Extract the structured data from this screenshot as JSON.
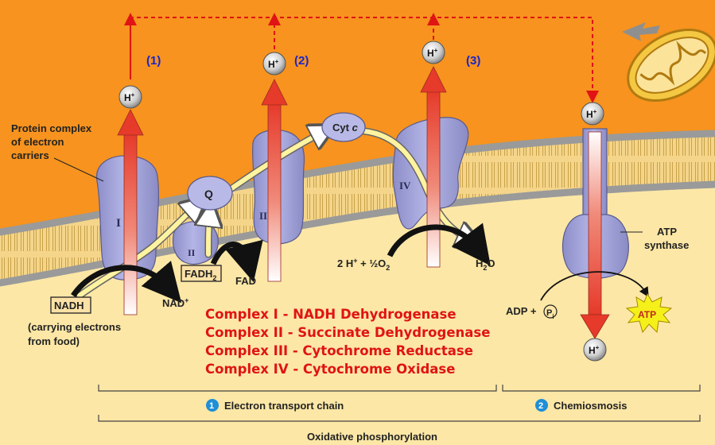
{
  "labels": {
    "protein_complex": [
      "Protein complex",
      "of electron",
      "carriers"
    ],
    "complex_I": "I",
    "complex_II": "II",
    "complex_III": "III",
    "complex_IV": "IV",
    "Q": "Q",
    "cytc": "Cyt",
    "cytc_italic": "c",
    "nadh": "NADH",
    "nad_plus": "NAD",
    "fadh2": "FADH",
    "fadh2_sub": "2",
    "fad": "FAD",
    "carrying": [
      "(carrying electrons",
      "from food)"
    ],
    "water_eq_left": "2 H",
    "water_eq_mid": " + ½O",
    "water_eq_sub": "2",
    "water_h": "H",
    "water_sub": "2",
    "water_o": "O",
    "atp_synthase": [
      "ATP",
      "synthase"
    ],
    "adp": "ADP + ",
    "pi": "P",
    "pi_sub": "i",
    "atp": "ATP",
    "proton": "H",
    "proton_sup": "+",
    "step1": "(1)",
    "step2": "(2)",
    "step3": "(3)",
    "etc_num": "1",
    "etc": "Electron transport chain",
    "chemi_num": "2",
    "chemiosmosis": "Chemiosmosis",
    "oxphos": "Oxidative phosphorylation"
  },
  "complexes_legend": [
    "Complex I - NADH Dehydrogenase",
    "Complex II - Succinate Dehydrogenase",
    "Complex III - Cytochrome Reductase",
    "Complex IV - Cytochrome Oxidase"
  ],
  "colors": {
    "background": "#f7931e",
    "matrix": "#fce7a6",
    "protein": "#a8a9dc",
    "arrow_red": "#e8402c",
    "legend_text": "#e01414",
    "step_text": "#1a25c8",
    "dashed": "#e01414"
  }
}
